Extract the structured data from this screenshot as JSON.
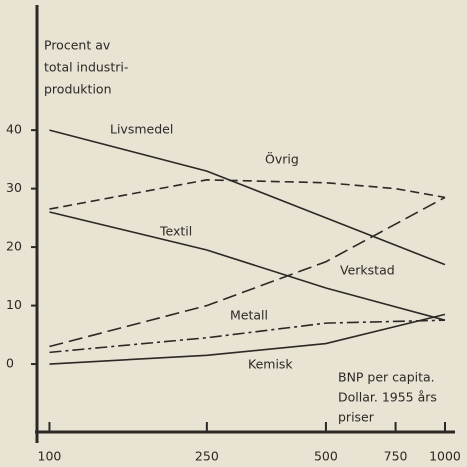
{
  "chart_data": {
    "type": "line",
    "ylabel": [
      "Procent av",
      "total industri-",
      "produktion"
    ],
    "xlabel": [
      "BNP per capita.",
      "Dollar. 1955 års",
      "priser"
    ],
    "xscale": "log",
    "xlim": [
      93,
      1060
    ],
    "xticks": [
      100,
      250,
      500,
      750,
      1000
    ],
    "ylim": [
      -13.5,
      61.4
    ],
    "yticks": [
      0,
      10,
      20,
      30,
      40
    ],
    "color": "#2b2925",
    "series": [
      {
        "name": "Livsmedel",
        "style": "solid",
        "x": [
          100,
          250,
          500,
          1000
        ],
        "values": [
          40,
          33,
          25,
          17
        ]
      },
      {
        "name": "Övrig",
        "style": "dashed",
        "x": [
          100,
          250,
          500,
          750,
          1000
        ],
        "values": [
          26.5,
          31.5,
          31,
          30,
          28.5
        ]
      },
      {
        "name": "Textil",
        "style": "solid",
        "x": [
          100,
          250,
          500,
          1000
        ],
        "values": [
          26,
          19.5,
          13,
          7.5
        ]
      },
      {
        "name": "Verkstad",
        "style": "long-dashed",
        "x": [
          100,
          250,
          500,
          1000
        ],
        "values": [
          3,
          10,
          17.5,
          28.5
        ]
      },
      {
        "name": "Metall",
        "style": "dash-dot",
        "x": [
          100,
          250,
          500,
          1000
        ],
        "values": [
          2,
          4.5,
          7,
          7.5
        ]
      },
      {
        "name": "Kemisk",
        "style": "solid",
        "x": [
          100,
          250,
          500,
          1000
        ],
        "values": [
          0,
          1.5,
          3.5,
          8.5
        ]
      }
    ]
  }
}
